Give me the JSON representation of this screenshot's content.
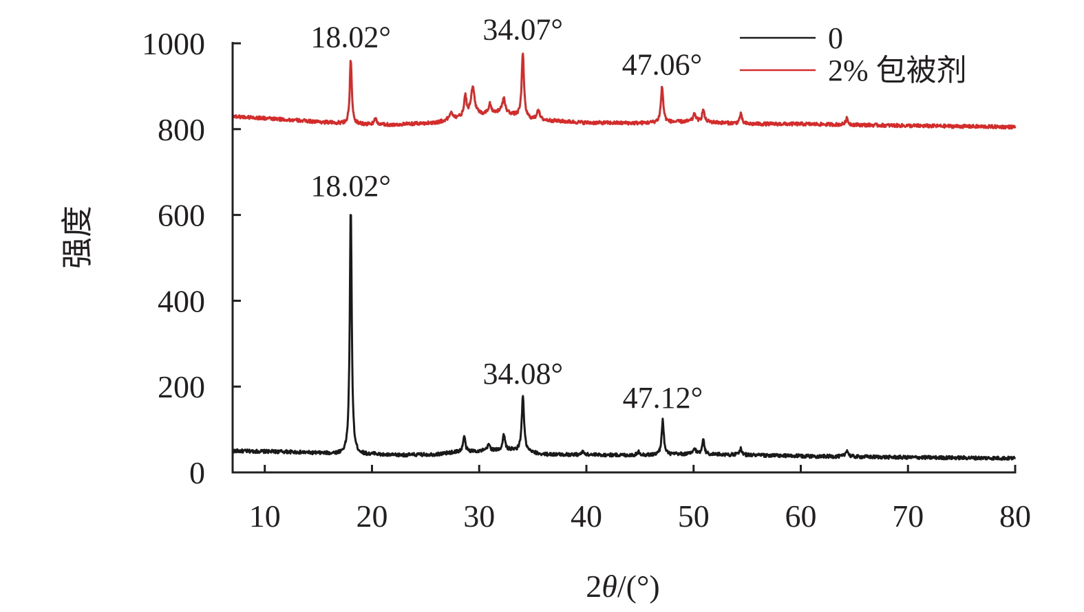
{
  "chart_data": {
    "type": "line",
    "title": "",
    "xlabel": "2θ/(°)",
    "xlabel_parts": {
      "prefix": "2",
      "symbol": "θ",
      "suffix": "/(°)"
    },
    "ylabel": "强度",
    "xlim": [
      7,
      80
    ],
    "ylim": [
      0,
      1000
    ],
    "xticks": [
      "10",
      "20",
      "30",
      "40",
      "50",
      "60",
      "70",
      "80"
    ],
    "xtick_values": [
      10,
      20,
      30,
      40,
      50,
      60,
      70,
      80
    ],
    "yticks": [
      "0",
      "200",
      "400",
      "600",
      "800",
      "1000"
    ],
    "ytick_values": [
      0,
      200,
      400,
      600,
      800,
      1000
    ],
    "grid": false,
    "legend_position": "top-right",
    "series": [
      {
        "name": "0",
        "color": "#1a1a1a",
        "baseline": [
          [
            7,
            50
          ],
          [
            12,
            48
          ],
          [
            18,
            42
          ],
          [
            22,
            40
          ],
          [
            26,
            42
          ],
          [
            28,
            48
          ],
          [
            33,
            52
          ],
          [
            36,
            42
          ],
          [
            45,
            40
          ],
          [
            50,
            43
          ],
          [
            60,
            38
          ],
          [
            70,
            35
          ],
          [
            80,
            33
          ]
        ],
        "peaks": [
          {
            "x": 18.02,
            "y": 615,
            "w": 0.11
          },
          {
            "x": 20.3,
            "y": 45,
            "w": 0.12
          },
          {
            "x": 28.6,
            "y": 85,
            "w": 0.12
          },
          {
            "x": 30.9,
            "y": 65,
            "w": 0.15
          },
          {
            "x": 32.3,
            "y": 88,
            "w": 0.13
          },
          {
            "x": 34.08,
            "y": 178,
            "w": 0.13
          },
          {
            "x": 39.7,
            "y": 48,
            "w": 0.15
          },
          {
            "x": 44.9,
            "y": 48,
            "w": 0.15
          },
          {
            "x": 47.12,
            "y": 122,
            "w": 0.12
          },
          {
            "x": 50.1,
            "y": 55,
            "w": 0.15
          },
          {
            "x": 50.9,
            "y": 80,
            "w": 0.11
          },
          {
            "x": 54.4,
            "y": 55,
            "w": 0.13
          },
          {
            "x": 64.3,
            "y": 52,
            "w": 0.14
          }
        ],
        "noise": 4,
        "peak_labels": [
          {
            "text": "18.02°",
            "x": 18.02,
            "y": 615
          },
          {
            "text": "34.08°",
            "x": 34.08,
            "y": 178
          },
          {
            "text": "47.12°",
            "x": 47.12,
            "y": 122
          }
        ]
      },
      {
        "name": "2% 包被剂",
        "color": "#d42b2b",
        "baseline": [
          [
            7,
            830
          ],
          [
            12,
            822
          ],
          [
            18,
            812
          ],
          [
            22,
            810
          ],
          [
            26,
            815
          ],
          [
            28,
            825
          ],
          [
            32,
            840
          ],
          [
            35,
            822
          ],
          [
            40,
            815
          ],
          [
            45,
            814
          ],
          [
            50,
            818
          ],
          [
            55,
            812
          ],
          [
            60,
            812
          ],
          [
            70,
            808
          ],
          [
            80,
            805
          ]
        ],
        "peaks": [
          {
            "x": 18.02,
            "y": 962,
            "w": 0.11
          },
          {
            "x": 20.3,
            "y": 825,
            "w": 0.12
          },
          {
            "x": 27.4,
            "y": 838,
            "w": 0.2
          },
          {
            "x": 28.7,
            "y": 878,
            "w": 0.13
          },
          {
            "x": 29.4,
            "y": 895,
            "w": 0.22
          },
          {
            "x": 31.0,
            "y": 858,
            "w": 0.15
          },
          {
            "x": 32.3,
            "y": 870,
            "w": 0.16
          },
          {
            "x": 34.07,
            "y": 980,
            "w": 0.12
          },
          {
            "x": 35.5,
            "y": 845,
            "w": 0.15
          },
          {
            "x": 47.06,
            "y": 898,
            "w": 0.13
          },
          {
            "x": 50.1,
            "y": 835,
            "w": 0.15
          },
          {
            "x": 50.9,
            "y": 845,
            "w": 0.13
          },
          {
            "x": 54.4,
            "y": 835,
            "w": 0.13
          },
          {
            "x": 64.3,
            "y": 825,
            "w": 0.13
          }
        ],
        "noise": 4,
        "peak_labels": [
          {
            "text": "18.02°",
            "x": 18.02,
            "y": 962
          },
          {
            "text": "34.07°",
            "x": 34.07,
            "y": 980
          },
          {
            "text": "47.06°",
            "x": 47.06,
            "y": 898
          }
        ]
      }
    ]
  }
}
